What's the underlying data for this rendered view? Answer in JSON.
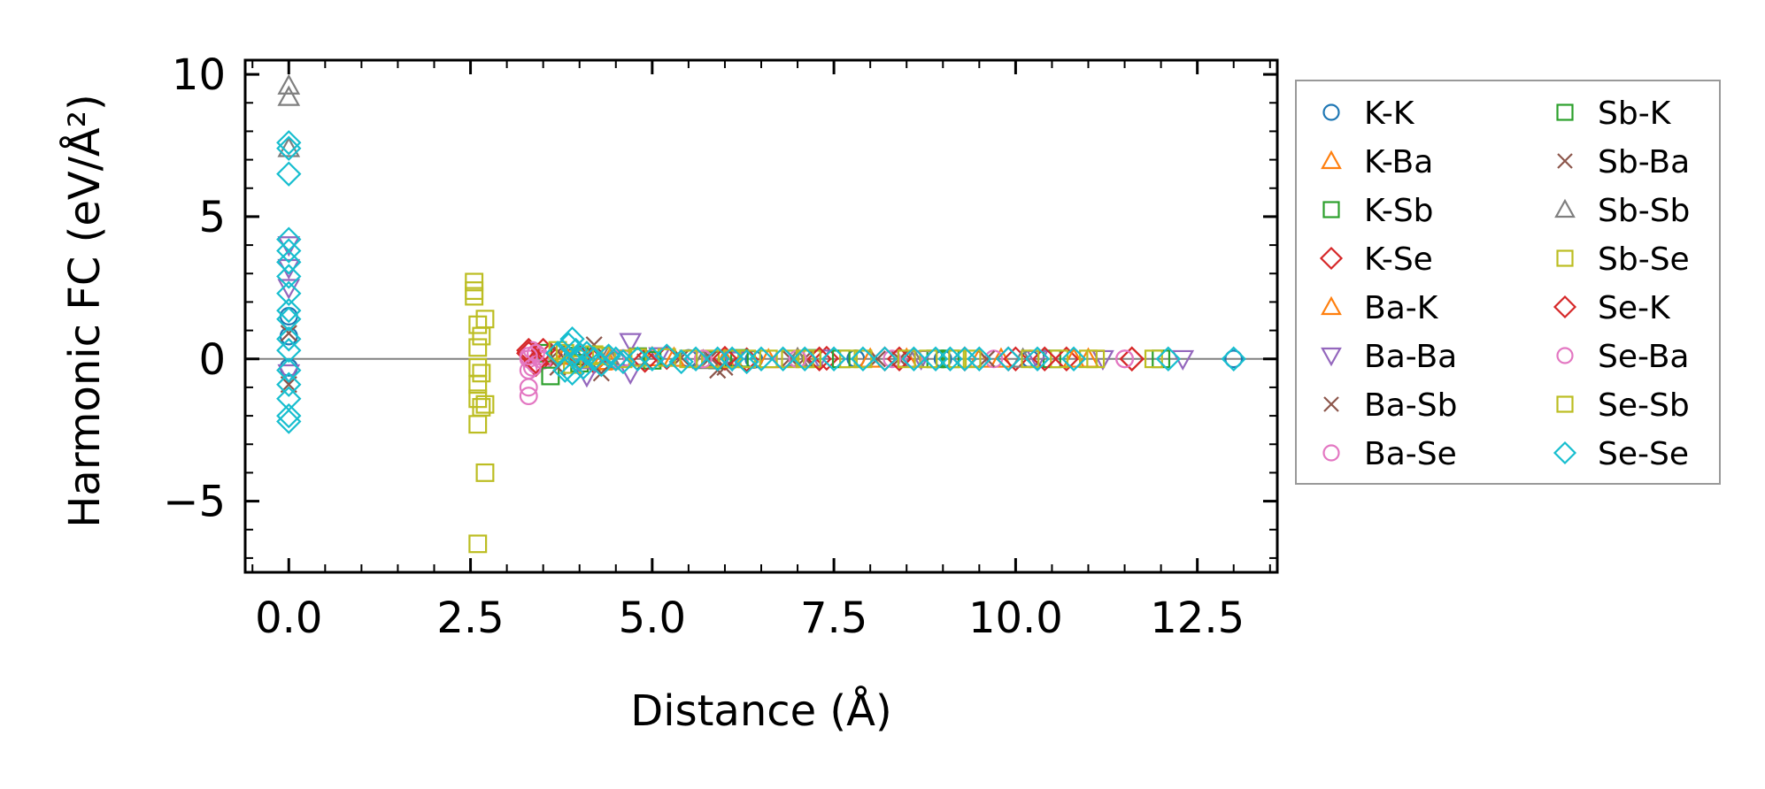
{
  "chart_data": {
    "type": "scatter",
    "xlabel": "Distance (Å)",
    "ylabel": "Harmonic FC (eV/Å²)",
    "xlim": [
      -0.6,
      13.6
    ],
    "ylim": [
      -7.5,
      10.5
    ],
    "xticks": [
      0.0,
      2.5,
      5.0,
      7.5,
      10.0,
      12.5
    ],
    "xtick_labels": [
      "0.0",
      "2.5",
      "5.0",
      "7.5",
      "10.0",
      "12.5"
    ],
    "yticks": [
      -5,
      0,
      5,
      10
    ],
    "ytick_labels": [
      "−5",
      "0",
      "5",
      "10"
    ],
    "zero_line": true,
    "legend_position": "outside-right",
    "series": [
      {
        "name": "K-K",
        "marker": "circle",
        "color": "#1f77b4",
        "points": [
          [
            0,
            1.5
          ],
          [
            0,
            0.8
          ],
          [
            0,
            -0.3
          ],
          [
            3.9,
            0.05
          ],
          [
            4.5,
            -0.05
          ],
          [
            5.5,
            0.02
          ],
          [
            6.4,
            -0.02
          ],
          [
            7.8,
            0.01
          ],
          [
            9.0,
            0.0
          ],
          [
            10.2,
            0.0
          ],
          [
            13.0,
            0.0
          ]
        ]
      },
      {
        "name": "K-Ba",
        "marker": "triangle-up",
        "color": "#ff7f0e",
        "points": [
          [
            3.8,
            0.1
          ],
          [
            4.3,
            -0.1
          ],
          [
            5.0,
            0.05
          ],
          [
            6.0,
            -0.03
          ],
          [
            7.0,
            0.02
          ],
          [
            8.5,
            0.0
          ],
          [
            9.8,
            0.0
          ],
          [
            11.0,
            0.0
          ]
        ]
      },
      {
        "name": "K-Sb",
        "marker": "square",
        "color": "#2ca02c",
        "points": [
          [
            3.5,
            0.2
          ],
          [
            4.0,
            -0.15
          ],
          [
            4.8,
            0.08
          ],
          [
            5.9,
            -0.04
          ],
          [
            7.2,
            0.02
          ],
          [
            8.9,
            0.0
          ],
          [
            10.5,
            0.0
          ]
        ]
      },
      {
        "name": "K-Se",
        "marker": "diamond",
        "color": "#d62728",
        "points": [
          [
            3.3,
            0.3
          ],
          [
            3.4,
            -0.2
          ],
          [
            3.6,
            0.15
          ],
          [
            4.2,
            -0.1
          ],
          [
            5.2,
            0.05
          ],
          [
            6.3,
            -0.03
          ],
          [
            7.4,
            0.02
          ],
          [
            8.2,
            0.0
          ],
          [
            9.3,
            0.0
          ],
          [
            10.0,
            0.0
          ],
          [
            10.7,
            0.0
          ],
          [
            11.6,
            0.0
          ]
        ]
      },
      {
        "name": "Ba-K",
        "marker": "triangle-up",
        "color": "#ff7f0e",
        "points": [
          [
            3.8,
            0.15
          ],
          [
            4.4,
            -0.08
          ],
          [
            5.3,
            0.03
          ],
          [
            6.6,
            -0.02
          ],
          [
            8.0,
            0.0
          ],
          [
            9.5,
            0.0
          ],
          [
            10.8,
            0.0
          ]
        ]
      },
      {
        "name": "Ba-Ba",
        "marker": "triangle-down",
        "color": "#9467bd",
        "points": [
          [
            0,
            4.0
          ],
          [
            0,
            3.2
          ],
          [
            0,
            2.5
          ],
          [
            0,
            -0.5
          ],
          [
            4.1,
            -0.6
          ],
          [
            4.7,
            0.6
          ],
          [
            4.7,
            -0.5
          ],
          [
            5.1,
            0.1
          ],
          [
            6.1,
            -0.05
          ],
          [
            7.3,
            0.02
          ],
          [
            8.7,
            0.0
          ],
          [
            10.3,
            0.0
          ],
          [
            11.2,
            0.0
          ],
          [
            12.3,
            0.0
          ]
        ]
      },
      {
        "name": "Ba-Sb",
        "marker": "x",
        "color": "#8c564b",
        "points": [
          [
            0,
            0.9
          ],
          [
            0,
            -0.9
          ],
          [
            3.7,
            0.25
          ],
          [
            4.2,
            0.5
          ],
          [
            4.9,
            -0.1
          ],
          [
            5.8,
            0.04
          ],
          [
            6.0,
            -0.3
          ],
          [
            7.1,
            0.02
          ],
          [
            8.4,
            0.0
          ]
        ]
      },
      {
        "name": "Ba-Se",
        "marker": "circle",
        "color": "#e377c2",
        "points": [
          [
            3.3,
            0.0
          ],
          [
            3.3,
            -0.4
          ],
          [
            3.3,
            -1.0
          ],
          [
            3.3,
            -1.3
          ],
          [
            3.35,
            0.3
          ],
          [
            3.4,
            -0.2
          ],
          [
            3.45,
            0.1
          ],
          [
            3.5,
            -0.05
          ],
          [
            4.6,
            0.02
          ],
          [
            5.6,
            -0.02
          ],
          [
            6.8,
            0.01
          ],
          [
            8.3,
            0.0
          ],
          [
            9.7,
            0.0
          ],
          [
            11.5,
            0.0
          ]
        ]
      },
      {
        "name": "Sb-K",
        "marker": "square",
        "color": "#2ca02c",
        "points": [
          [
            3.6,
            -0.6
          ],
          [
            4.0,
            0.1
          ],
          [
            5.0,
            -0.05
          ],
          [
            6.2,
            0.02
          ],
          [
            7.6,
            0.0
          ],
          [
            9.1,
            0.0
          ],
          [
            12.0,
            0.0
          ]
        ]
      },
      {
        "name": "Sb-Ba",
        "marker": "x",
        "color": "#8c564b",
        "points": [
          [
            3.7,
            -0.3
          ],
          [
            4.1,
            0.2
          ],
          [
            4.3,
            -0.5
          ],
          [
            5.4,
            0.05
          ],
          [
            5.9,
            -0.4
          ],
          [
            6.9,
            0.02
          ],
          [
            8.1,
            0.0
          ],
          [
            9.6,
            0.0
          ]
        ]
      },
      {
        "name": "Sb-Sb",
        "marker": "triangle-up",
        "color": "#7f7f7f",
        "points": [
          [
            0,
            9.6
          ],
          [
            0,
            9.2
          ],
          [
            0,
            7.4
          ],
          [
            4.4,
            0.1
          ],
          [
            5.7,
            -0.05
          ],
          [
            7.0,
            0.02
          ],
          [
            8.6,
            0.0
          ],
          [
            10.1,
            0.0
          ]
        ]
      },
      {
        "name": "Sb-Se",
        "marker": "square",
        "color": "#bcbd22",
        "points": [
          [
            2.55,
            2.7
          ],
          [
            2.55,
            2.4
          ],
          [
            2.55,
            2.2
          ],
          [
            2.6,
            1.2
          ],
          [
            2.6,
            0.4
          ],
          [
            2.6,
            -0.3
          ],
          [
            2.6,
            -0.9
          ],
          [
            2.6,
            -1.4
          ],
          [
            2.6,
            -2.3
          ],
          [
            2.6,
            -6.5
          ],
          [
            2.65,
            0.8
          ],
          [
            2.65,
            -0.5
          ],
          [
            2.65,
            -1.7
          ],
          [
            2.7,
            1.4
          ],
          [
            2.7,
            -1.6
          ],
          [
            2.7,
            -4.0
          ],
          [
            3.8,
            0.2
          ],
          [
            4.0,
            0.0
          ],
          [
            4.3,
            0.1
          ],
          [
            4.6,
            0.0
          ],
          [
            5.2,
            0.05
          ],
          [
            5.8,
            0.0
          ],
          [
            6.3,
            0.0
          ],
          [
            6.9,
            0.0
          ],
          [
            7.2,
            0.0
          ],
          [
            7.9,
            0.0
          ],
          [
            8.8,
            0.0
          ],
          [
            9.4,
            0.0
          ],
          [
            10.6,
            0.0
          ],
          [
            11.1,
            0.0
          ],
          [
            11.9,
            0.0
          ]
        ]
      },
      {
        "name": "Se-K",
        "marker": "diamond",
        "color": "#d62728",
        "points": [
          [
            3.3,
            0.2
          ],
          [
            3.4,
            -0.1
          ],
          [
            3.5,
            0.3
          ],
          [
            4.0,
            0.05
          ],
          [
            4.9,
            -0.05
          ],
          [
            6.0,
            0.02
          ],
          [
            7.3,
            0.0
          ],
          [
            8.4,
            0.0
          ],
          [
            9.9,
            0.0
          ],
          [
            10.4,
            0.0
          ],
          [
            11.6,
            0.0
          ]
        ]
      },
      {
        "name": "Se-Ba",
        "marker": "circle",
        "color": "#e377c2",
        "points": [
          [
            3.3,
            0.1
          ],
          [
            3.35,
            -0.3
          ],
          [
            3.4,
            0.2
          ],
          [
            4.5,
            0.0
          ],
          [
            5.7,
            0.0
          ],
          [
            7.0,
            0.0
          ],
          [
            8.6,
            0.0
          ],
          [
            11.5,
            0.0
          ]
        ]
      },
      {
        "name": "Se-Sb",
        "marker": "square",
        "color": "#bcbd22",
        "points": [
          [
            3.7,
            0.3
          ],
          [
            3.9,
            -0.2
          ],
          [
            4.2,
            0.15
          ],
          [
            4.8,
            0.05
          ],
          [
            5.5,
            0.0
          ],
          [
            6.1,
            0.0
          ],
          [
            6.6,
            0.0
          ],
          [
            7.1,
            0.0
          ],
          [
            7.7,
            0.0
          ],
          [
            8.5,
            0.0
          ],
          [
            9.2,
            0.0
          ],
          [
            10.2,
            0.0
          ],
          [
            11.0,
            0.0
          ]
        ]
      },
      {
        "name": "Se-Se",
        "marker": "diamond",
        "color": "#17becf",
        "points": [
          [
            0,
            7.6
          ],
          [
            0,
            7.4
          ],
          [
            0,
            6.5
          ],
          [
            0,
            4.2
          ],
          [
            0,
            3.8
          ],
          [
            0,
            3.4
          ],
          [
            0,
            2.9
          ],
          [
            0,
            2.3
          ],
          [
            0,
            1.7
          ],
          [
            0,
            1.4
          ],
          [
            0,
            0.7
          ],
          [
            0,
            0.3
          ],
          [
            0,
            -0.4
          ],
          [
            0,
            -0.9
          ],
          [
            0,
            -1.4
          ],
          [
            0,
            -2.0
          ],
          [
            0,
            -2.2
          ],
          [
            3.7,
            0.2
          ],
          [
            3.8,
            -0.4
          ],
          [
            3.85,
            0.5
          ],
          [
            3.9,
            0.7
          ],
          [
            3.9,
            -0.5
          ],
          [
            3.95,
            0.3
          ],
          [
            4.0,
            0.0
          ],
          [
            4.05,
            -0.3
          ],
          [
            4.1,
            0.2
          ],
          [
            4.2,
            0.0
          ],
          [
            4.3,
            -0.2
          ],
          [
            4.4,
            0.1
          ],
          [
            4.5,
            0.0
          ],
          [
            4.6,
            -0.1
          ],
          [
            4.8,
            0.0
          ],
          [
            5.0,
            0.0
          ],
          [
            5.2,
            0.1
          ],
          [
            5.4,
            -0.1
          ],
          [
            5.6,
            0.0
          ],
          [
            5.9,
            0.0
          ],
          [
            6.1,
            0.0
          ],
          [
            6.3,
            -0.1
          ],
          [
            6.5,
            0.0
          ],
          [
            6.8,
            0.0
          ],
          [
            7.1,
            0.0
          ],
          [
            7.5,
            0.0
          ],
          [
            7.9,
            0.0
          ],
          [
            8.2,
            0.0
          ],
          [
            8.6,
            0.0
          ],
          [
            8.9,
            0.0
          ],
          [
            9.1,
            0.0
          ],
          [
            9.3,
            0.0
          ],
          [
            9.5,
            0.0
          ],
          [
            9.9,
            0.0
          ],
          [
            10.3,
            0.0
          ],
          [
            10.8,
            0.0
          ],
          [
            12.1,
            0.0
          ],
          [
            13.0,
            0.0
          ]
        ]
      }
    ]
  }
}
